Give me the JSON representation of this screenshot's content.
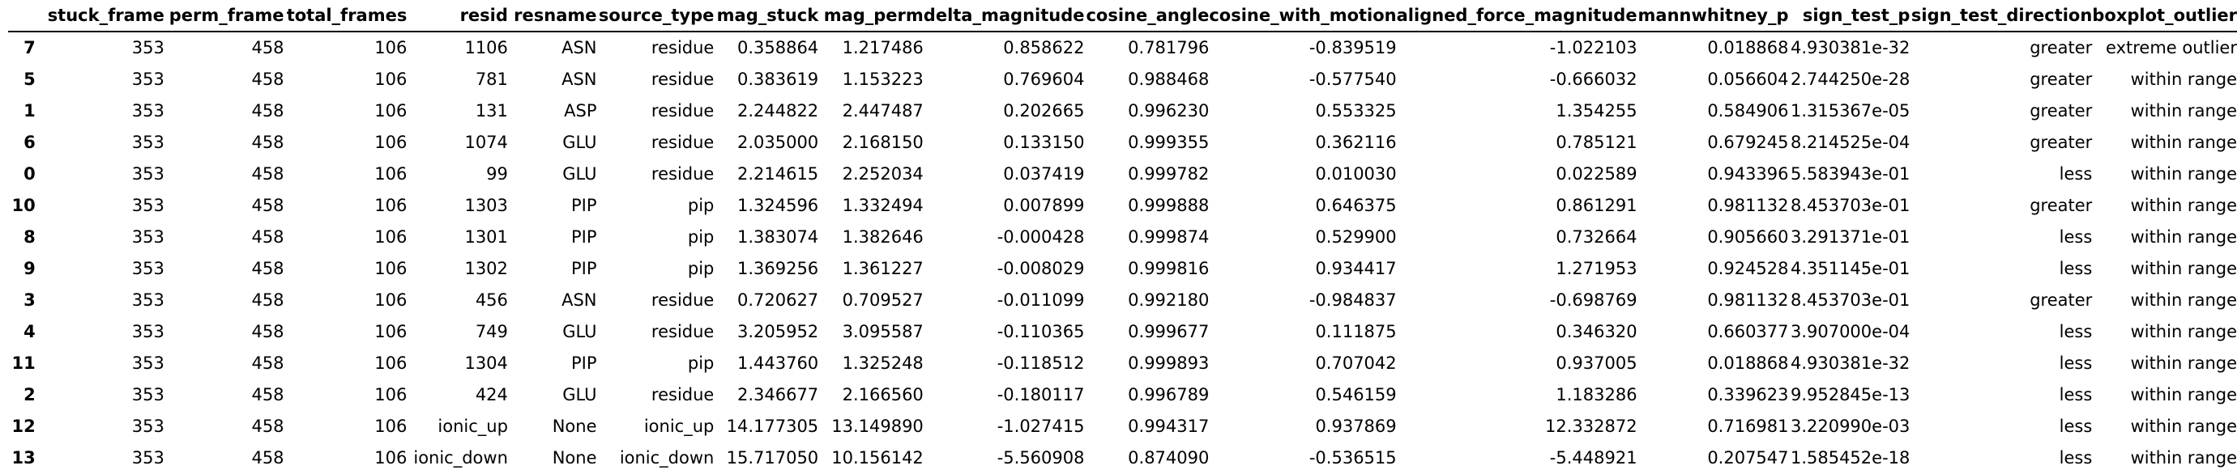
{
  "table": {
    "columns": [
      "",
      "stuck_frame",
      "perm_frame",
      "total_frames",
      "resid",
      "resname",
      "source_type",
      "mag_stuck",
      "mag_perm",
      "delta_magnitude",
      "cosine_angle",
      "cosine_with_motion",
      "aligned_force_magnitude",
      "mannwhitney_p",
      "sign_test_p",
      "sign_test_direction",
      "boxplot_outlier"
    ],
    "rows": [
      [
        "7",
        "353",
        "458",
        "106",
        "1106",
        "ASN",
        "residue",
        "0.358864",
        "1.217486",
        "0.858622",
        "0.781796",
        "-0.839519",
        "-1.022103",
        "0.018868",
        "4.930381e-32",
        "greater",
        "extreme outlier"
      ],
      [
        "5",
        "353",
        "458",
        "106",
        "781",
        "ASN",
        "residue",
        "0.383619",
        "1.153223",
        "0.769604",
        "0.988468",
        "-0.577540",
        "-0.666032",
        "0.056604",
        "2.744250e-28",
        "greater",
        "within range"
      ],
      [
        "1",
        "353",
        "458",
        "106",
        "131",
        "ASP",
        "residue",
        "2.244822",
        "2.447487",
        "0.202665",
        "0.996230",
        "0.553325",
        "1.354255",
        "0.584906",
        "1.315367e-05",
        "greater",
        "within range"
      ],
      [
        "6",
        "353",
        "458",
        "106",
        "1074",
        "GLU",
        "residue",
        "2.035000",
        "2.168150",
        "0.133150",
        "0.999355",
        "0.362116",
        "0.785121",
        "0.679245",
        "8.214525e-04",
        "greater",
        "within range"
      ],
      [
        "0",
        "353",
        "458",
        "106",
        "99",
        "GLU",
        "residue",
        "2.214615",
        "2.252034",
        "0.037419",
        "0.999782",
        "0.010030",
        "0.022589",
        "0.943396",
        "5.583943e-01",
        "less",
        "within range"
      ],
      [
        "10",
        "353",
        "458",
        "106",
        "1303",
        "PIP",
        "pip",
        "1.324596",
        "1.332494",
        "0.007899",
        "0.999888",
        "0.646375",
        "0.861291",
        "0.981132",
        "8.453703e-01",
        "greater",
        "within range"
      ],
      [
        "8",
        "353",
        "458",
        "106",
        "1301",
        "PIP",
        "pip",
        "1.383074",
        "1.382646",
        "-0.000428",
        "0.999874",
        "0.529900",
        "0.732664",
        "0.905660",
        "3.291371e-01",
        "less",
        "within range"
      ],
      [
        "9",
        "353",
        "458",
        "106",
        "1302",
        "PIP",
        "pip",
        "1.369256",
        "1.361227",
        "-0.008029",
        "0.999816",
        "0.934417",
        "1.271953",
        "0.924528",
        "4.351145e-01",
        "less",
        "within range"
      ],
      [
        "3",
        "353",
        "458",
        "106",
        "456",
        "ASN",
        "residue",
        "0.720627",
        "0.709527",
        "-0.011099",
        "0.992180",
        "-0.984837",
        "-0.698769",
        "0.981132",
        "8.453703e-01",
        "greater",
        "within range"
      ],
      [
        "4",
        "353",
        "458",
        "106",
        "749",
        "GLU",
        "residue",
        "3.205952",
        "3.095587",
        "-0.110365",
        "0.999677",
        "0.111875",
        "0.346320",
        "0.660377",
        "3.907000e-04",
        "less",
        "within range"
      ],
      [
        "11",
        "353",
        "458",
        "106",
        "1304",
        "PIP",
        "pip",
        "1.443760",
        "1.325248",
        "-0.118512",
        "0.999893",
        "0.707042",
        "0.937005",
        "0.018868",
        "4.930381e-32",
        "less",
        "within range"
      ],
      [
        "2",
        "353",
        "458",
        "106",
        "424",
        "GLU",
        "residue",
        "2.346677",
        "2.166560",
        "-0.180117",
        "0.996789",
        "0.546159",
        "1.183286",
        "0.339623",
        "9.952845e-13",
        "less",
        "within range"
      ],
      [
        "12",
        "353",
        "458",
        "106",
        "ionic_up",
        "None",
        "ionic_up",
        "14.177305",
        "13.149890",
        "-1.027415",
        "0.994317",
        "0.937869",
        "12.332872",
        "0.716981",
        "3.220990e-03",
        "less",
        "within range"
      ],
      [
        "13",
        "353",
        "458",
        "106",
        "ionic_down",
        "None",
        "ionic_down",
        "15.717050",
        "10.156142",
        "-5.560908",
        "0.874090",
        "-0.536515",
        "-5.448921",
        "0.207547",
        "1.585452e-18",
        "less",
        "within range"
      ]
    ]
  }
}
